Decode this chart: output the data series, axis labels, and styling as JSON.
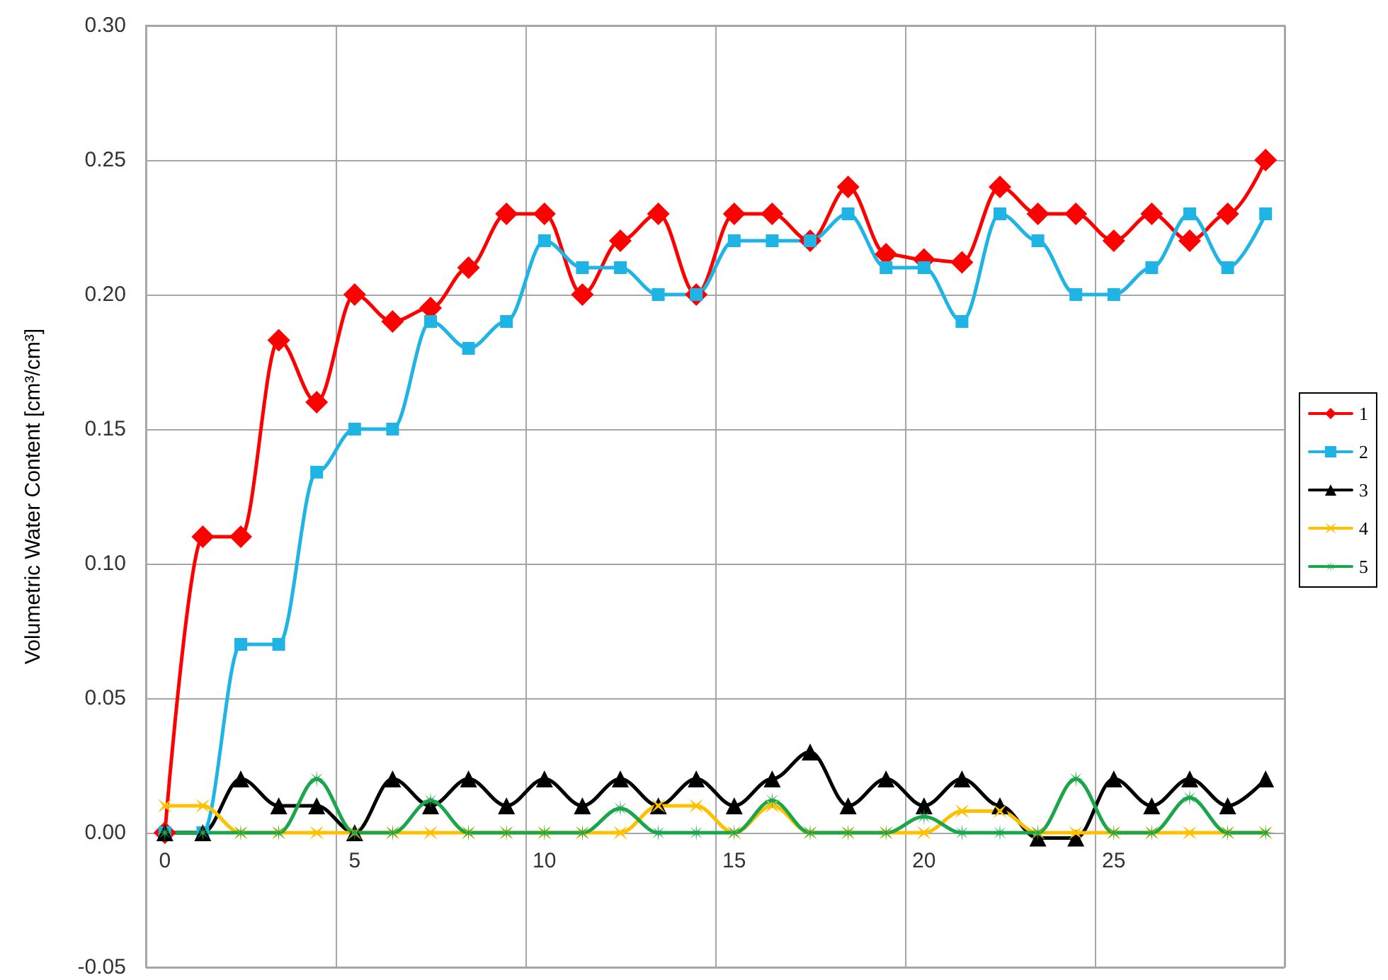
{
  "chart_data": {
    "type": "line",
    "ylabel": "Volumetric Water Content [cm³/cm³]",
    "categories": [
      "0",
      null,
      null,
      null,
      null,
      "5",
      null,
      null,
      null,
      null,
      "10",
      null,
      null,
      null,
      null,
      "15",
      null,
      null,
      null,
      null,
      "20",
      null,
      null,
      null,
      null,
      "25",
      null,
      null,
      null,
      null
    ],
    "series": [
      {
        "name": "1",
        "color": "#ff0000",
        "marker": "diamond",
        "values": [
          0,
          0.11,
          0.11,
          0.183,
          0.16,
          0.2,
          0.19,
          0.195,
          0.21,
          0.23,
          0.23,
          0.2,
          0.22,
          0.23,
          0.2,
          0.23,
          0.23,
          0.22,
          0.24,
          0.215,
          0.213,
          0.212,
          0.24,
          0.23,
          0.23,
          0.22,
          0.23,
          0.22,
          0.23,
          0.25
        ]
      },
      {
        "name": "2",
        "color": "#1fb4e6",
        "marker": "square",
        "values": [
          0,
          0,
          0.07,
          0.07,
          0.134,
          0.15,
          0.15,
          0.19,
          0.18,
          0.19,
          0.22,
          0.21,
          0.21,
          0.2,
          0.2,
          0.22,
          0.22,
          0.22,
          0.23,
          0.21,
          0.21,
          0.19,
          0.23,
          0.22,
          0.2,
          0.2,
          0.21,
          0.23,
          0.21,
          0.23
        ]
      },
      {
        "name": "3",
        "color": "#000000",
        "marker": "triangle",
        "values": [
          0,
          0,
          0.02,
          0.01,
          0.01,
          0,
          0.02,
          0.01,
          0.02,
          0.01,
          0.02,
          0.01,
          0.02,
          0.01,
          0.02,
          0.01,
          0.02,
          0.03,
          0.01,
          0.02,
          0.01,
          0.02,
          0.01,
          -0.002,
          -0.002,
          0.02,
          0.01,
          0.02,
          0.01,
          0.02
        ]
      },
      {
        "name": "4",
        "color": "#ffc000",
        "marker": "cross",
        "values": [
          0.01,
          0.01,
          0,
          0,
          0,
          0,
          0,
          0,
          0,
          0,
          0,
          0,
          0,
          0.01,
          0.01,
          0,
          0.01,
          0,
          0,
          0,
          0,
          0.008,
          0.008,
          0,
          0,
          0,
          0,
          0,
          0,
          0
        ]
      },
      {
        "name": "5",
        "color": "#1aa64a",
        "marker": "star",
        "values": [
          0,
          0,
          0,
          0,
          0.02,
          0,
          0,
          0.012,
          0,
          0,
          0,
          0,
          0.009,
          0,
          0,
          0,
          0.012,
          0,
          0,
          0,
          0.006,
          0,
          0,
          0,
          0.02,
          0,
          0,
          0.013,
          0,
          0
        ]
      }
    ],
    "ylim": [
      -0.05,
      0.3
    ],
    "yticks": [
      {
        "value": -0.05,
        "label": "-0.05"
      },
      {
        "value": 0,
        "label": "0.00"
      },
      {
        "value": 0.05,
        "label": "0.05"
      },
      {
        "value": 0.1,
        "label": "0.10"
      },
      {
        "value": 0.15,
        "label": "0.15"
      },
      {
        "value": 0.2,
        "label": "0.20"
      },
      {
        "value": 0.25,
        "label": "0.25"
      },
      {
        "value": 0.3,
        "label": "0.30"
      }
    ],
    "grid": true,
    "legend": "right",
    "line_style": "solid"
  }
}
